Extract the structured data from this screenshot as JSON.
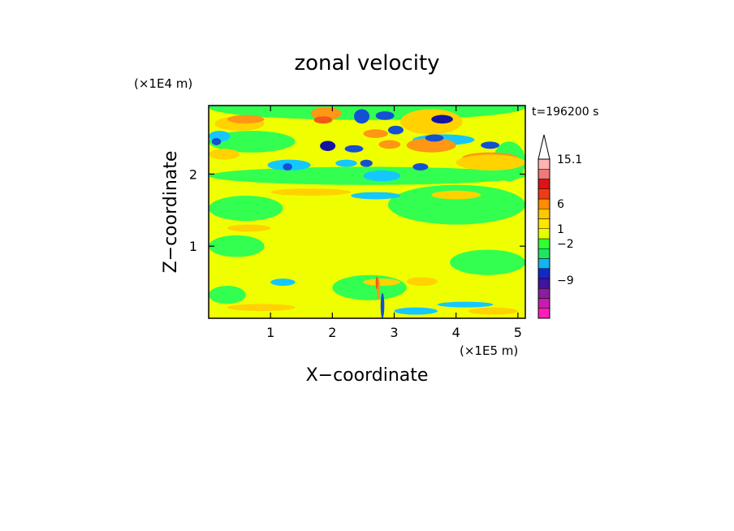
{
  "chart_data": {
    "type": "heatmap",
    "title": "zonal velocity",
    "xlabel": "X−coordinate",
    "ylabel": "Z−coordinate",
    "x_unit": "(×1E5 m)",
    "y_unit": "(×1E4 m)",
    "time_label": "t=196200 s",
    "xlim": [
      0,
      5.12
    ],
    "ylim": [
      0,
      2.95
    ],
    "x_ticks": [
      1,
      2,
      3,
      4,
      5
    ],
    "y_ticks": [
      1,
      2
    ],
    "x_tick_labels": [
      "1",
      "2",
      "3",
      "4",
      "5"
    ],
    "y_tick_labels": [
      "1",
      "2"
    ],
    "colorbar": {
      "levels": [
        {
          "color": "#ff1cbc"
        },
        {
          "color": "#c81cac"
        },
        {
          "color": "#8c1ca0"
        },
        {
          "color": "#4014a0"
        },
        {
          "color": "#1428c8"
        },
        {
          "color": "#14b4f0"
        },
        {
          "color": "#1ce664"
        },
        {
          "color": "#32ff32"
        },
        {
          "color": "#e6ff00"
        },
        {
          "color": "#ffe600"
        },
        {
          "color": "#ffc800"
        },
        {
          "color": "#ff8c00"
        },
        {
          "color": "#f03c14"
        },
        {
          "color": "#dc1414"
        },
        {
          "color": "#f07878"
        },
        {
          "color": "#ffb4b4"
        }
      ],
      "labels": [
        "15.1",
        "6",
        "1",
        "−2",
        "−9"
      ],
      "label_values": [
        15.1,
        6,
        1,
        -2,
        -9
      ]
    },
    "description_note": "",
    "field_colors": {
      "strong_neg": "#1414a0",
      "neg": "#1450d2",
      "weak_neg": "#14c8ff",
      "near_zero": "#32ff50",
      "weak_pos": "#f0ff00",
      "pos": "#ffd200",
      "strong_pos": "#ff9614",
      "very_pos": "#f05a14"
    }
  }
}
